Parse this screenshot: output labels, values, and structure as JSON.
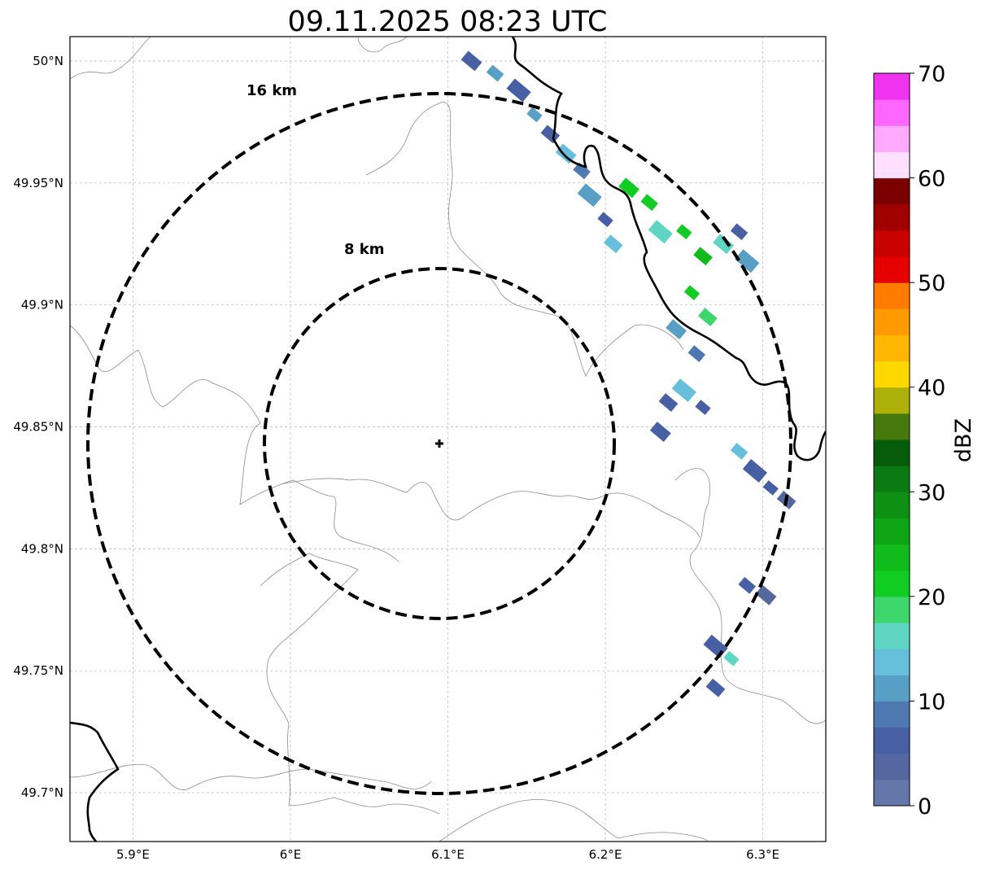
{
  "title": "09.11.2025 08:23 UTC",
  "map": {
    "lon_range": [
      5.86,
      6.34
    ],
    "lat_range": [
      49.68,
      50.01
    ],
    "x_ticks": [
      {
        "value": 5.9,
        "label": "5.9°E"
      },
      {
        "value": 6.0,
        "label": "6°E"
      },
      {
        "value": 6.1,
        "label": "6.1°E"
      },
      {
        "value": 6.2,
        "label": "6.2°E"
      },
      {
        "value": 6.3,
        "label": "6.3°E"
      }
    ],
    "y_ticks": [
      {
        "value": 50.0,
        "label": "50°N"
      },
      {
        "value": 49.95,
        "label": "49.95°N"
      },
      {
        "value": 49.9,
        "label": "49.9°N"
      },
      {
        "value": 49.85,
        "label": "49.85°N"
      },
      {
        "value": 49.8,
        "label": "49.8°N"
      },
      {
        "value": 49.75,
        "label": "49.75°N"
      },
      {
        "value": 49.7,
        "label": "49.7°N"
      }
    ],
    "gridlines": true,
    "radar_site": {
      "lon": 6.095,
      "lat": 49.843
    },
    "range_rings": [
      {
        "radius_km": 8,
        "label": "8 km"
      },
      {
        "radius_km": 16,
        "label": "16 km"
      }
    ]
  },
  "colorbar": {
    "label": "dBZ",
    "min": 0,
    "max": 70,
    "ticks": [
      "0",
      "10",
      "20",
      "30",
      "40",
      "50",
      "60",
      "70"
    ],
    "colors": [
      "#6577a8",
      "#54679f",
      "#4760a3",
      "#4d79b0",
      "#589fc6",
      "#66c0dc",
      "#5fd6c4",
      "#3dd66d",
      "#11cc22",
      "#11bb1b",
      "#0fa616",
      "#0e9015",
      "#0b7a12",
      "#065c0b",
      "#46790b",
      "#aeb00a",
      "#ffd800",
      "#ffb600",
      "#ff9a00",
      "#ff7c00",
      "#e60000",
      "#c80000",
      "#a00000",
      "#7a0000",
      "#ffdfff",
      "#ffaaff",
      "#ff66ff",
      "#ef33ef"
    ]
  },
  "echoes": [
    {
      "lon": 6.115,
      "lat": 50.0,
      "dbz": 6
    },
    {
      "lon": 6.13,
      "lat": 49.995,
      "dbz": 10
    },
    {
      "lon": 6.145,
      "lat": 49.988,
      "dbz": 5
    },
    {
      "lon": 6.155,
      "lat": 49.978,
      "dbz": 12
    },
    {
      "lon": 6.165,
      "lat": 49.97,
      "dbz": 6
    },
    {
      "lon": 6.175,
      "lat": 49.962,
      "dbz": 14
    },
    {
      "lon": 6.185,
      "lat": 49.955,
      "dbz": 8
    },
    {
      "lon": 6.19,
      "lat": 49.945,
      "dbz": 12
    },
    {
      "lon": 6.2,
      "lat": 49.935,
      "dbz": 5
    },
    {
      "lon": 6.205,
      "lat": 49.925,
      "dbz": 14
    },
    {
      "lon": 6.215,
      "lat": 49.948,
      "dbz": 22
    },
    {
      "lon": 6.228,
      "lat": 49.942,
      "dbz": 20
    },
    {
      "lon": 6.235,
      "lat": 49.93,
      "dbz": 17
    },
    {
      "lon": 6.25,
      "lat": 49.93,
      "dbz": 22
    },
    {
      "lon": 6.262,
      "lat": 49.92,
      "dbz": 23
    },
    {
      "lon": 6.275,
      "lat": 49.925,
      "dbz": 15
    },
    {
      "lon": 6.285,
      "lat": 49.93,
      "dbz": 6
    },
    {
      "lon": 6.29,
      "lat": 49.918,
      "dbz": 10
    },
    {
      "lon": 6.255,
      "lat": 49.905,
      "dbz": 22
    },
    {
      "lon": 6.265,
      "lat": 49.895,
      "dbz": 18
    },
    {
      "lon": 6.245,
      "lat": 49.89,
      "dbz": 12
    },
    {
      "lon": 6.258,
      "lat": 49.88,
      "dbz": 8
    },
    {
      "lon": 6.25,
      "lat": 49.865,
      "dbz": 14
    },
    {
      "lon": 6.262,
      "lat": 49.858,
      "dbz": 6
    },
    {
      "lon": 6.24,
      "lat": 49.86,
      "dbz": 5
    },
    {
      "lon": 6.235,
      "lat": 49.848,
      "dbz": 6
    },
    {
      "lon": 6.285,
      "lat": 49.84,
      "dbz": 14
    },
    {
      "lon": 6.295,
      "lat": 49.832,
      "dbz": 6
    },
    {
      "lon": 6.305,
      "lat": 49.825,
      "dbz": 5
    },
    {
      "lon": 6.315,
      "lat": 49.82,
      "dbz": 4
    },
    {
      "lon": 6.302,
      "lat": 49.781,
      "dbz": 3
    },
    {
      "lon": 6.29,
      "lat": 49.785,
      "dbz": 5
    },
    {
      "lon": 6.27,
      "lat": 49.76,
      "dbz": 6
    },
    {
      "lon": 6.28,
      "lat": 49.755,
      "dbz": 15
    },
    {
      "lon": 6.27,
      "lat": 49.743,
      "dbz": 5
    }
  ]
}
